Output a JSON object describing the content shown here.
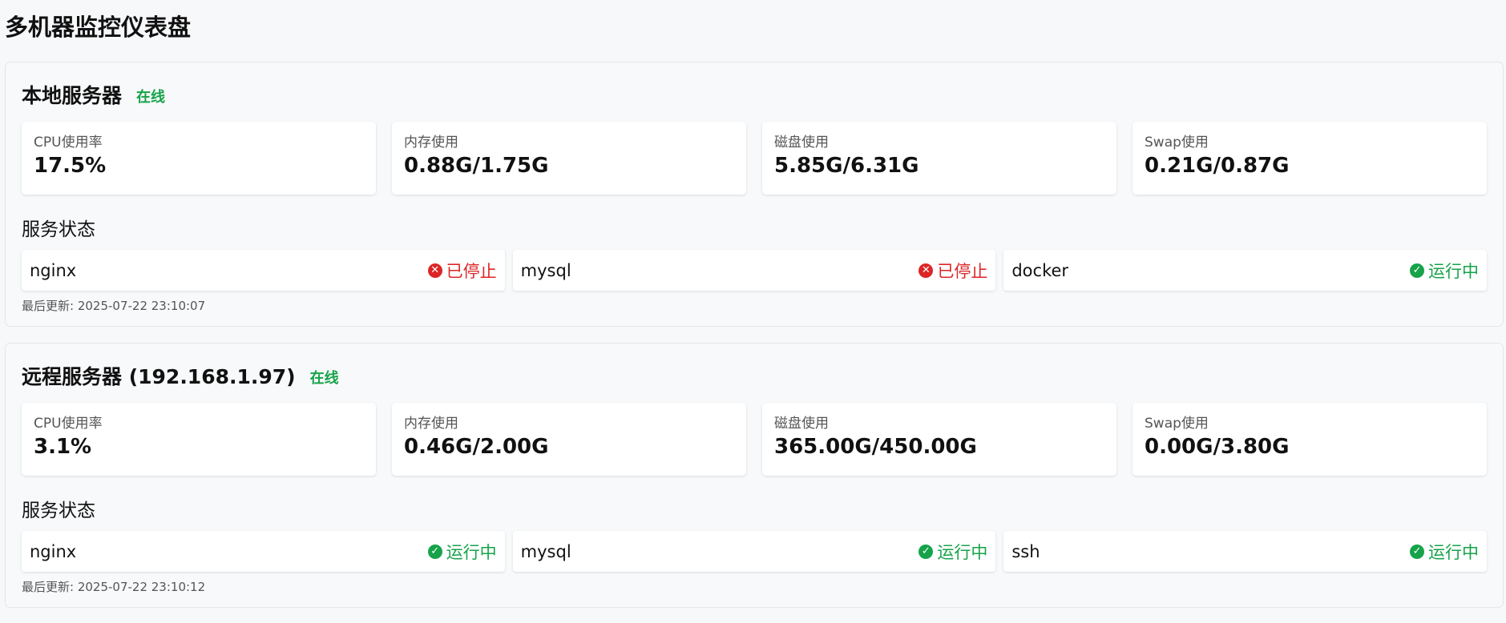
{
  "page": {
    "title": "多机器监控仪表盘"
  },
  "servers": [
    {
      "name": "本地服务器",
      "status": "在线",
      "metrics": [
        {
          "label": "CPU使用率",
          "value": "17.5%"
        },
        {
          "label": "内存使用",
          "value": "0.88G/1.75G"
        },
        {
          "label": "磁盘使用",
          "value": "5.85G/6.31G"
        },
        {
          "label": "Swap使用",
          "value": "0.21G/0.87G"
        }
      ],
      "services_title": "服务状态",
      "services": [
        {
          "name": "nginx",
          "state": "已停止",
          "state_type": "stopped",
          "icon": "x-circle-icon"
        },
        {
          "name": "mysql",
          "state": "已停止",
          "state_type": "stopped",
          "icon": "x-circle-icon"
        },
        {
          "name": "docker",
          "state": "运行中",
          "state_type": "running",
          "icon": "check-circle-icon"
        }
      ],
      "last_updated": "最后更新: 2025-07-22 23:10:07"
    },
    {
      "name": "远程服务器 (192.168.1.97)",
      "status": "在线",
      "metrics": [
        {
          "label": "CPU使用率",
          "value": "3.1%"
        },
        {
          "label": "内存使用",
          "value": "0.46G/2.00G"
        },
        {
          "label": "磁盘使用",
          "value": "365.00G/450.00G"
        },
        {
          "label": "Swap使用",
          "value": "0.00G/3.80G"
        }
      ],
      "services_title": "服务状态",
      "services": [
        {
          "name": "nginx",
          "state": "运行中",
          "state_type": "running",
          "icon": "check-circle-icon"
        },
        {
          "name": "mysql",
          "state": "运行中",
          "state_type": "running",
          "icon": "check-circle-icon"
        },
        {
          "name": "ssh",
          "state": "运行中",
          "state_type": "running",
          "icon": "check-circle-icon"
        }
      ],
      "last_updated": "最后更新: 2025-07-22 23:10:12"
    }
  ],
  "colors": {
    "online": "#16a34a",
    "running": "#16a34a",
    "stopped": "#dc2626"
  }
}
